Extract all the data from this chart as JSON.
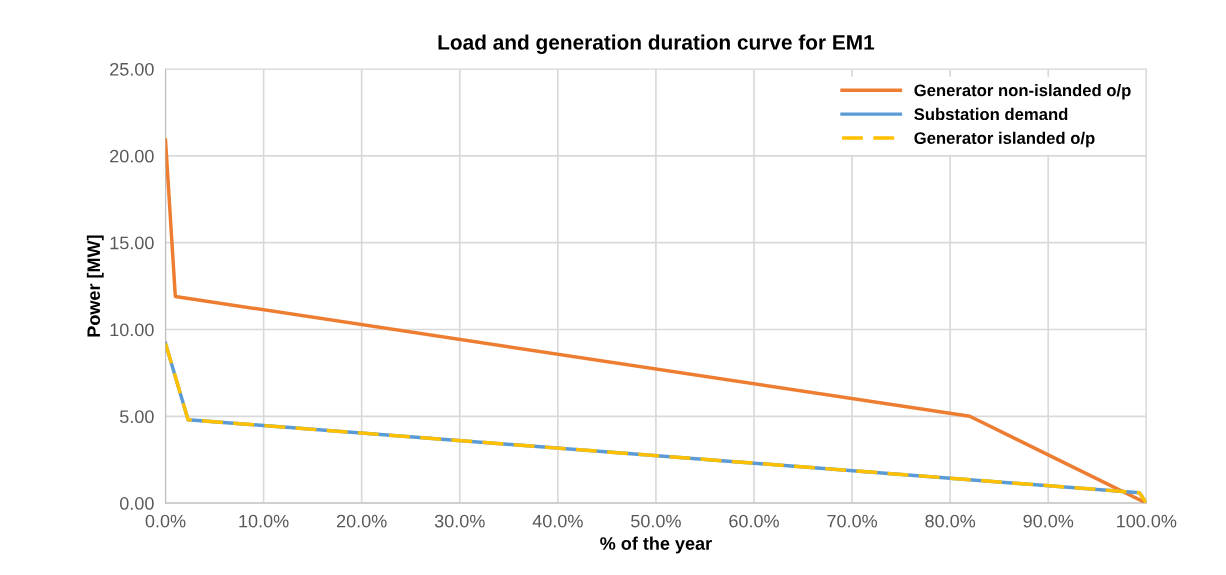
{
  "chart_data": {
    "type": "line",
    "title": "Load and generation duration curve for EM1",
    "xlabel": "% of the year",
    "ylabel": "Power [MW]",
    "xlim": [
      0,
      100
    ],
    "xticks": [
      {
        "value": 0,
        "label": "0.0%"
      },
      {
        "value": 10,
        "label": "10.0%"
      },
      {
        "value": 20,
        "label": "20.0%"
      },
      {
        "value": 30,
        "label": "30.0%"
      },
      {
        "value": 40,
        "label": "40.0%"
      },
      {
        "value": 50,
        "label": "50.0%"
      },
      {
        "value": 60,
        "label": "60.0%"
      },
      {
        "value": 70,
        "label": "70.0%"
      },
      {
        "value": 80,
        "label": "80.0%"
      },
      {
        "value": 90,
        "label": "90.0%"
      },
      {
        "value": 100,
        "label": "100.0%"
      }
    ],
    "ylim": [
      0,
      25
    ],
    "yticks": [
      {
        "value": 0,
        "label": "0.00"
      },
      {
        "value": 5,
        "label": "5.00"
      },
      {
        "value": 10,
        "label": "10.00"
      },
      {
        "value": 15,
        "label": "15.00"
      },
      {
        "value": 20,
        "label": "20.00"
      },
      {
        "value": 25,
        "label": "25.00"
      }
    ],
    "grid": true,
    "legend": "top right",
    "marker": "none",
    "series": [
      {
        "name": "Generator non-islanded o/p",
        "color": "#ed7d31",
        "line_style": "solid",
        "x": [
          0,
          1.0,
          82,
          100
        ],
        "values": [
          20.9,
          11.9,
          5.0,
          0
        ]
      },
      {
        "name": "Substation demand",
        "color": "#5b9bd5",
        "line_style": "solid",
        "x": [
          0,
          2.3,
          99.3,
          100
        ],
        "values": [
          9.2,
          4.8,
          0.6,
          0
        ]
      },
      {
        "name": "Generator islanded o/p",
        "color": "#ffc000",
        "line_style": "dashed",
        "x": [
          0,
          2.3,
          99.3,
          100
        ],
        "values": [
          9.2,
          4.8,
          0.6,
          0
        ]
      }
    ]
  }
}
